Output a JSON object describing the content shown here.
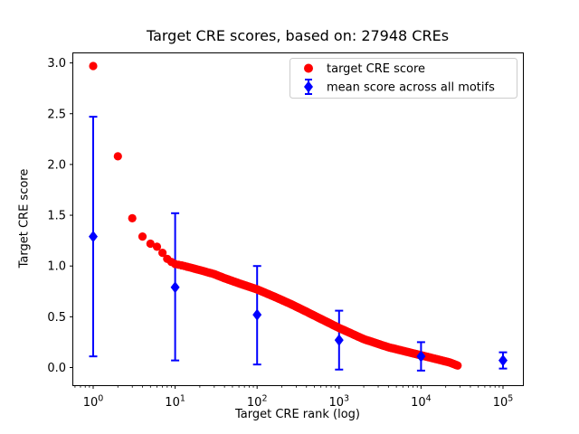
{
  "chart_data": {
    "type": "scatter",
    "title": "Target CRE scores, based on: 27948 CREs",
    "xlabel": "Target CRE rank (log)",
    "ylabel": "Target CRE score",
    "x_scale": "log",
    "grid": false,
    "background": "#ffffff",
    "xlim_log10": [
      -0.25,
      5.25
    ],
    "ylim": [
      -0.17,
      3.1
    ],
    "x_major_ticks": [
      1,
      10,
      100,
      1000,
      10000,
      100000
    ],
    "y_ticks": [
      0.0,
      0.5,
      1.0,
      1.5,
      2.0,
      2.5,
      3.0
    ],
    "total_cres": 27948,
    "legend": {
      "position": "upper right",
      "entries": [
        {
          "label": "target CRE score",
          "marker": "circle",
          "color": "#ff0000"
        },
        {
          "label": "mean score across all motifs",
          "marker": "diamond-errorbar",
          "color": "#0000ff"
        }
      ]
    },
    "series": [
      {
        "name": "target CRE score",
        "type": "scatter",
        "color": "#ff0000",
        "marker": "circle",
        "n_points": 27948,
        "profile_log10rank_score": [
          [
            0.0,
            2.97
          ],
          [
            0.301,
            2.08
          ],
          [
            0.477,
            1.47
          ],
          [
            0.602,
            1.29
          ],
          [
            0.699,
            1.22
          ],
          [
            0.778,
            1.19
          ],
          [
            0.845,
            1.13
          ],
          [
            0.903,
            1.07
          ],
          [
            0.954,
            1.04
          ],
          [
            1.0,
            1.02
          ],
          [
            1.114,
            1.0
          ],
          [
            1.301,
            0.96
          ],
          [
            1.477,
            0.92
          ],
          [
            1.602,
            0.88
          ],
          [
            1.778,
            0.83
          ],
          [
            2.0,
            0.77
          ],
          [
            2.204,
            0.7
          ],
          [
            2.4,
            0.63
          ],
          [
            2.602,
            0.55
          ],
          [
            2.8,
            0.47
          ],
          [
            3.0,
            0.39
          ],
          [
            3.301,
            0.28
          ],
          [
            3.602,
            0.2
          ],
          [
            3.903,
            0.14
          ],
          [
            4.204,
            0.08
          ],
          [
            4.35,
            0.05
          ],
          [
            4.446,
            0.02
          ]
        ]
      },
      {
        "name": "mean score across all motifs",
        "type": "errorbar",
        "color": "#0000ff",
        "marker": "diamond",
        "points": [
          {
            "x": 1,
            "mean": 1.29,
            "lo": 0.11,
            "hi": 2.47
          },
          {
            "x": 10,
            "mean": 0.79,
            "lo": 0.07,
            "hi": 1.52
          },
          {
            "x": 100,
            "mean": 0.52,
            "lo": 0.03,
            "hi": 1.0
          },
          {
            "x": 1000,
            "mean": 0.27,
            "lo": -0.02,
            "hi": 0.56
          },
          {
            "x": 10000,
            "mean": 0.11,
            "lo": -0.03,
            "hi": 0.25
          },
          {
            "x": 100000,
            "mean": 0.07,
            "lo": -0.01,
            "hi": 0.15
          }
        ]
      }
    ]
  }
}
